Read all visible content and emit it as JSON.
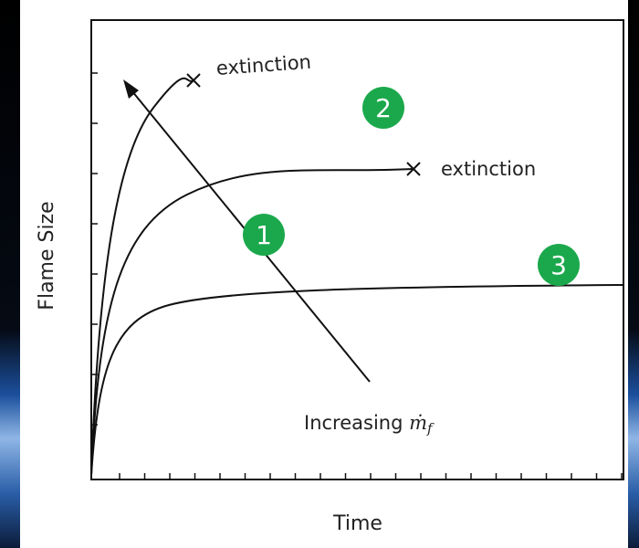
{
  "axes": {
    "y_label": "Flame Size",
    "x_label": "Time"
  },
  "annotations": {
    "extinction_top": "extinction",
    "extinction_middle": "extinction",
    "arrow_label": {
      "text": "Increasing",
      "symbol": "ṁ",
      "subscript": "f"
    }
  },
  "badges": [
    "1",
    "2",
    "3"
  ]
}
